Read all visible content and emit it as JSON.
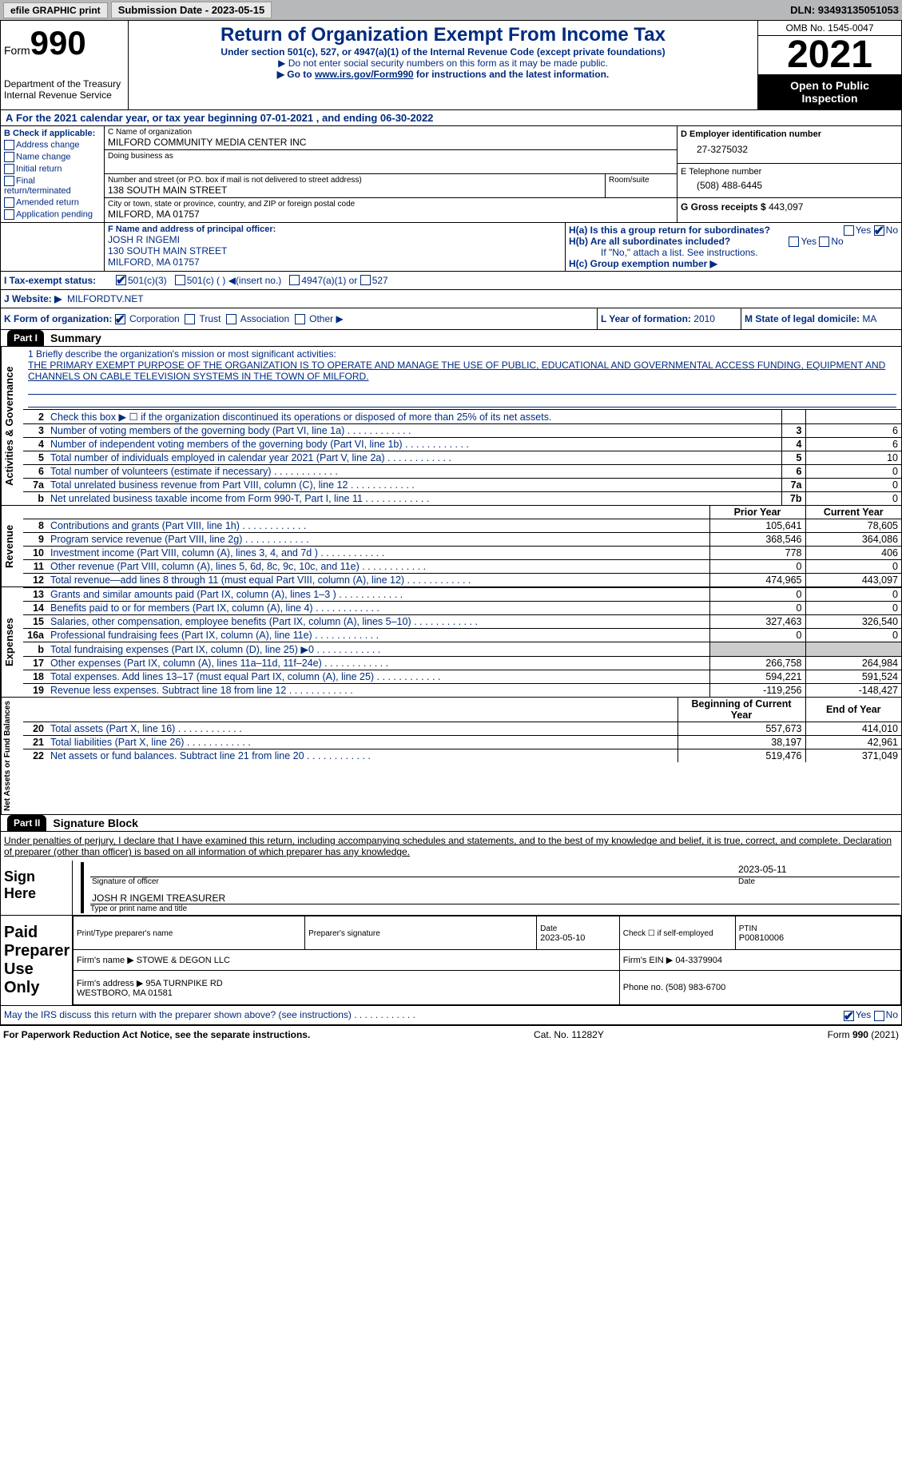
{
  "topbar": {
    "efile": "efile GRAPHIC print",
    "sub": "Submission Date - 2023-05-15",
    "dln": "DLN: 93493135051053"
  },
  "header": {
    "formWord": "Form",
    "formNum": "990",
    "dept": "Department of the Treasury\nInternal Revenue Service",
    "title": "Return of Organization Exempt From Income Tax",
    "sub1": "Under section 501(c), 527, or 4947(a)(1) of the Internal Revenue Code (except private foundations)",
    "sub2": "▶ Do not enter social security numbers on this form as it may be made public.",
    "sub3": "▶ Go to www.irs.gov/Form990 for instructions and the latest information.",
    "link": "www.irs.gov/Form990",
    "omb": "OMB No. 1545-0047",
    "year": "2021",
    "public": "Open to Public Inspection"
  },
  "A": {
    "text": "For the 2021 calendar year, or tax year beginning 07-01-2021   , and ending 06-30-2022"
  },
  "B": {
    "label": "B Check if applicable:",
    "opts": [
      "Address change",
      "Name change",
      "Initial return",
      "Final return/terminated",
      "Amended return",
      "Application pending"
    ]
  },
  "C": {
    "nameLbl": "C Name of organization",
    "name": "MILFORD COMMUNITY MEDIA CENTER INC",
    "dbaLbl": "Doing business as",
    "dba": "",
    "streetLbl": "Number and street (or P.O. box if mail is not delivered to street address)",
    "roomLbl": "Room/suite",
    "street": "138 SOUTH MAIN STREET",
    "cityLbl": "City or town, state or province, country, and ZIP or foreign postal code",
    "city": "MILFORD, MA  01757"
  },
  "D": {
    "lbl": "D Employer identification number",
    "val": "27-3275032"
  },
  "E": {
    "lbl": "E Telephone number",
    "val": "(508) 488-6445"
  },
  "G": {
    "lbl": "G Gross receipts $",
    "val": "443,097"
  },
  "F": {
    "lbl": "F Name and address of principal officer:",
    "name": "JOSH R INGEMI",
    "addr": "130 SOUTH MAIN STREET\nMILFORD, MA  01757"
  },
  "H": {
    "a": "H(a)  Is this a group return for subordinates?",
    "yes": "Yes",
    "no": "No",
    "b": "H(b)  Are all subordinates included?",
    "c": "If \"No,\" attach a list. See instructions.",
    "d": "H(c)  Group exemption number ▶"
  },
  "I": {
    "lbl": "I    Tax-exempt status:",
    "o1": "501(c)(3)",
    "o2": "501(c) (  ) ◀(insert no.)",
    "o3": "4947(a)(1) or",
    "o4": "527"
  },
  "J": {
    "lbl": "J    Website: ▶",
    "val": "MILFORDTV.NET"
  },
  "K": {
    "lbl": "K Form of organization:",
    "o1": "Corporation",
    "o2": "Trust",
    "o3": "Association",
    "o4": "Other ▶"
  },
  "L": {
    "lbl": "L Year of formation:",
    "val": "2010"
  },
  "M": {
    "lbl": "M State of legal domicile:",
    "val": "MA"
  },
  "part1": {
    "num": "Part I",
    "title": "Summary"
  },
  "mission": {
    "lbl": "1   Briefly describe the organization's mission or most significant activities:",
    "text": "THE PRIMARY EXEMPT PURPOSE OF THE ORGANIZATION IS TO OPERATE AND MANAGE THE USE OF PUBLIC, EDUCATIONAL AND GOVERNMENTAL ACCESS FUNDING, EQUIPMENT AND CHANNELS ON CABLE TELEVISION SYSTEMS IN THE TOWN OF MILFORD."
  },
  "gov": [
    {
      "n": "2",
      "t": "Check this box ▶ ☐ if the organization discontinued its operations or disposed of more than 25% of its net assets.",
      "b": "",
      "v": ""
    },
    {
      "n": "3",
      "t": "Number of voting members of the governing body (Part VI, line 1a)",
      "b": "3",
      "v": "6"
    },
    {
      "n": "4",
      "t": "Number of independent voting members of the governing body (Part VI, line 1b)",
      "b": "4",
      "v": "6"
    },
    {
      "n": "5",
      "t": "Total number of individuals employed in calendar year 2021 (Part V, line 2a)",
      "b": "5",
      "v": "10"
    },
    {
      "n": "6",
      "t": "Total number of volunteers (estimate if necessary)",
      "b": "6",
      "v": "0"
    },
    {
      "n": "7a",
      "t": "Total unrelated business revenue from Part VIII, column (C), line 12",
      "b": "7a",
      "v": "0"
    },
    {
      "n": "b",
      "t": "Net unrelated business taxable income from Form 990-T, Part I, line 11",
      "b": "7b",
      "v": "0"
    }
  ],
  "colHdr": {
    "prior": "Prior Year",
    "current": "Current Year"
  },
  "revenue": [
    {
      "n": "8",
      "t": "Contributions and grants (Part VIII, line 1h)",
      "p": "105,641",
      "c": "78,605"
    },
    {
      "n": "9",
      "t": "Program service revenue (Part VIII, line 2g)",
      "p": "368,546",
      "c": "364,086"
    },
    {
      "n": "10",
      "t": "Investment income (Part VIII, column (A), lines 3, 4, and 7d )",
      "p": "778",
      "c": "406"
    },
    {
      "n": "11",
      "t": "Other revenue (Part VIII, column (A), lines 5, 6d, 8c, 9c, 10c, and 11e)",
      "p": "0",
      "c": "0"
    },
    {
      "n": "12",
      "t": "Total revenue—add lines 8 through 11 (must equal Part VIII, column (A), line 12)",
      "p": "474,965",
      "c": "443,097"
    }
  ],
  "expenses": [
    {
      "n": "13",
      "t": "Grants and similar amounts paid (Part IX, column (A), lines 1–3 )",
      "p": "0",
      "c": "0"
    },
    {
      "n": "14",
      "t": "Benefits paid to or for members (Part IX, column (A), line 4)",
      "p": "0",
      "c": "0"
    },
    {
      "n": "15",
      "t": "Salaries, other compensation, employee benefits (Part IX, column (A), lines 5–10)",
      "p": "327,463",
      "c": "326,540"
    },
    {
      "n": "16a",
      "t": "Professional fundraising fees (Part IX, column (A), line 11e)",
      "p": "0",
      "c": "0"
    },
    {
      "n": "b",
      "t": "Total fundraising expenses (Part IX, column (D), line 25) ▶0",
      "p": "grey",
      "c": "grey"
    },
    {
      "n": "17",
      "t": "Other expenses (Part IX, column (A), lines 11a–11d, 11f–24e)",
      "p": "266,758",
      "c": "264,984"
    },
    {
      "n": "18",
      "t": "Total expenses. Add lines 13–17 (must equal Part IX, column (A), line 25)",
      "p": "594,221",
      "c": "591,524"
    },
    {
      "n": "19",
      "t": "Revenue less expenses. Subtract line 18 from line 12",
      "p": "-119,256",
      "c": "-148,427"
    }
  ],
  "colHdr2": {
    "prior": "Beginning of Current Year",
    "current": "End of Year"
  },
  "assets": [
    {
      "n": "20",
      "t": "Total assets (Part X, line 16)",
      "p": "557,673",
      "c": "414,010"
    },
    {
      "n": "21",
      "t": "Total liabilities (Part X, line 26)",
      "p": "38,197",
      "c": "42,961"
    },
    {
      "n": "22",
      "t": "Net assets or fund balances. Subtract line 21 from line 20",
      "p": "519,476",
      "c": "371,049"
    }
  ],
  "part2": {
    "num": "Part II",
    "title": "Signature Block"
  },
  "sig": {
    "decl": "Under penalties of perjury, I declare that I have examined this return, including accompanying schedules and statements, and to the best of my knowledge and belief, it is true, correct, and complete. Declaration of preparer (other than officer) is based on all information of which preparer has any knowledge.",
    "signHere": "Sign Here",
    "sigOfficer": "Signature of officer",
    "sigDate": "2023-05-11",
    "dateLbl": "Date",
    "name": "JOSH R INGEMI TREASURER",
    "nameLbl": "Type or print name and title",
    "paid": "Paid Preparer Use Only",
    "pNameLbl": "Print/Type preparer's name",
    "pSigLbl": "Preparer's signature",
    "pDateLbl": "Date",
    "pDate": "2023-05-10",
    "chkLbl": "Check ☐ if self-employed",
    "ptinLbl": "PTIN",
    "ptin": "P00810006",
    "firmLbl": "Firm's name   ▶",
    "firm": "STOWE & DEGON LLC",
    "einLbl": "Firm's EIN ▶",
    "ein": "04-3379904",
    "addrLbl": "Firm's address ▶",
    "addr": "95A TURNPIKE RD\nWESTBORO, MA  01581",
    "phoneLbl": "Phone no.",
    "phone": "(508) 983-6700",
    "discuss": "May the IRS discuss this return with the preparer shown above? (see instructions)"
  },
  "footer": {
    "left": "For Paperwork Reduction Act Notice, see the separate instructions.",
    "mid": "Cat. No. 11282Y",
    "right": "Form 990 (2021)"
  },
  "vlabels": {
    "gov": "Activities & Governance",
    "rev": "Revenue",
    "exp": "Expenses",
    "net": "Net Assets or Fund Balances"
  }
}
